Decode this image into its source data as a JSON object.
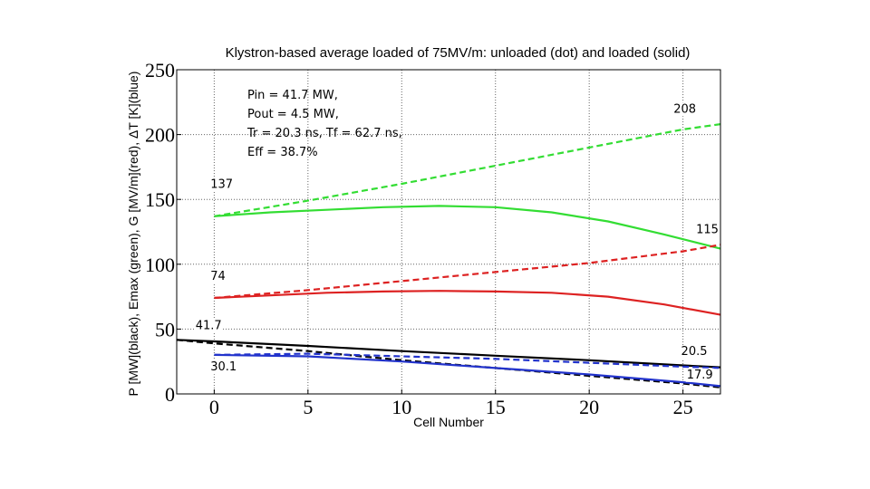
{
  "chart_data": {
    "type": "line",
    "title": "Klystron-based average loaded of 75MV/m: unloaded (dot) and loaded (solid)",
    "xlabel": "Cell Number",
    "ylabel": "P [MW](black), Emax (green), G [MV/m](red), ΔT [K](blue)",
    "xlim": [
      -2,
      27
    ],
    "ylim": [
      0,
      250
    ],
    "xticks": [
      0,
      5,
      10,
      15,
      20,
      25
    ],
    "yticks": [
      0,
      50,
      100,
      150,
      200,
      250
    ],
    "grid": true,
    "info_lines": [
      "Pin = 41.7 MW,",
      "Pout = 4.5 MW,",
      "Tr = 20.3 ns, Tf = 62.7 ns,",
      "Eff = 38.7%"
    ],
    "annotations": [
      {
        "text": "208",
        "x": 24.5,
        "y": 217
      },
      {
        "text": "137",
        "x": -0.2,
        "y": 159
      },
      {
        "text": "115",
        "x": 25.7,
        "y": 124
      },
      {
        "text": "74",
        "x": -0.2,
        "y": 88
      },
      {
        "text": "41.7",
        "x": -1.0,
        "y": 50
      },
      {
        "text": "20.5",
        "x": 24.9,
        "y": 30
      },
      {
        "text": "30.1",
        "x": -0.2,
        "y": 18
      },
      {
        "text": "17.9",
        "x": 25.2,
        "y": 12
      }
    ],
    "series": [
      {
        "key": "emax-unloaded",
        "color": "#33dd33",
        "dash": true,
        "x": [
          0,
          5,
          10,
          15,
          20,
          25,
          27
        ],
        "y": [
          137,
          149,
          162,
          176,
          190,
          204,
          208
        ]
      },
      {
        "key": "emax-loaded",
        "color": "#33dd33",
        "dash": false,
        "x": [
          0,
          3,
          6,
          9,
          12,
          15,
          18,
          21,
          24,
          27
        ],
        "y": [
          137,
          140,
          142,
          144,
          145,
          144,
          140,
          133,
          123,
          112
        ]
      },
      {
        "key": "g-unloaded",
        "color": "#dd2222",
        "dash": true,
        "x": [
          0,
          5,
          10,
          15,
          20,
          25,
          27
        ],
        "y": [
          74,
          80,
          87,
          94,
          101,
          110,
          115
        ]
      },
      {
        "key": "g-loaded",
        "color": "#dd2222",
        "dash": false,
        "x": [
          0,
          3,
          6,
          9,
          12,
          15,
          18,
          21,
          24,
          27
        ],
        "y": [
          74,
          76,
          78,
          79,
          79.5,
          79,
          78,
          75,
          69,
          61
        ]
      },
      {
        "key": "p-unloaded",
        "color": "#000000",
        "dash": true,
        "x": [
          -2,
          0,
          5,
          10,
          15,
          20,
          25,
          27
        ],
        "y": [
          41.7,
          39,
          33,
          26,
          20,
          14,
          8,
          5
        ]
      },
      {
        "key": "p-loaded",
        "color": "#000000",
        "dash": false,
        "x": [
          -2,
          0,
          5,
          10,
          15,
          20,
          25,
          27
        ],
        "y": [
          41.7,
          40.5,
          37,
          33,
          29.5,
          26,
          22,
          20.5
        ]
      },
      {
        "key": "dt-unloaded",
        "color": "#2233cc",
        "dash": true,
        "x": [
          0,
          5,
          10,
          15,
          20,
          25,
          27
        ],
        "y": [
          30.1,
          31,
          29,
          27,
          24,
          21,
          20
        ]
      },
      {
        "key": "dt-loaded",
        "color": "#2233cc",
        "dash": false,
        "x": [
          0,
          5,
          10,
          15,
          20,
          25,
          27
        ],
        "y": [
          30.1,
          29,
          25,
          20,
          15,
          9,
          6
        ]
      }
    ]
  }
}
